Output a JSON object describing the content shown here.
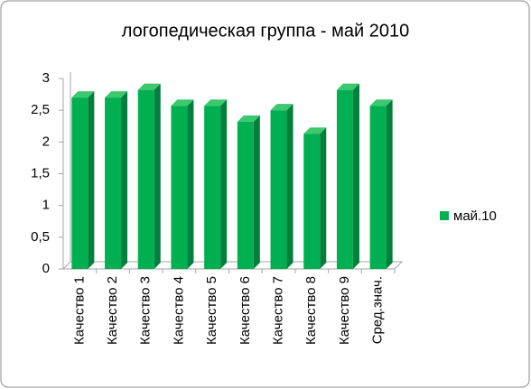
{
  "chart_data": {
    "type": "bar3d",
    "title": "логопедическая группа - май 2010",
    "categories": [
      "Качество 1",
      "Качество 2",
      "Качество 3",
      "Качество 4",
      "Качество 5",
      "Качество 6",
      "Качество 7",
      "Качество 8",
      "Качество 9",
      "Сред.знач."
    ],
    "series": [
      {
        "name": "май.10",
        "color": "#00b050",
        "values": [
          2.7,
          2.7,
          2.82,
          2.57,
          2.57,
          2.32,
          2.5,
          2.13,
          2.82,
          2.57
        ]
      }
    ],
    "ylim": [
      0,
      3
    ],
    "yticks": [
      0,
      {
        "value": 0.5,
        "label": "0,5"
      },
      1,
      {
        "value": 1.5,
        "label": "1,5"
      },
      2,
      {
        "value": 2.5,
        "label": "2,5"
      },
      3
    ],
    "grid": false,
    "legend": "right"
  }
}
